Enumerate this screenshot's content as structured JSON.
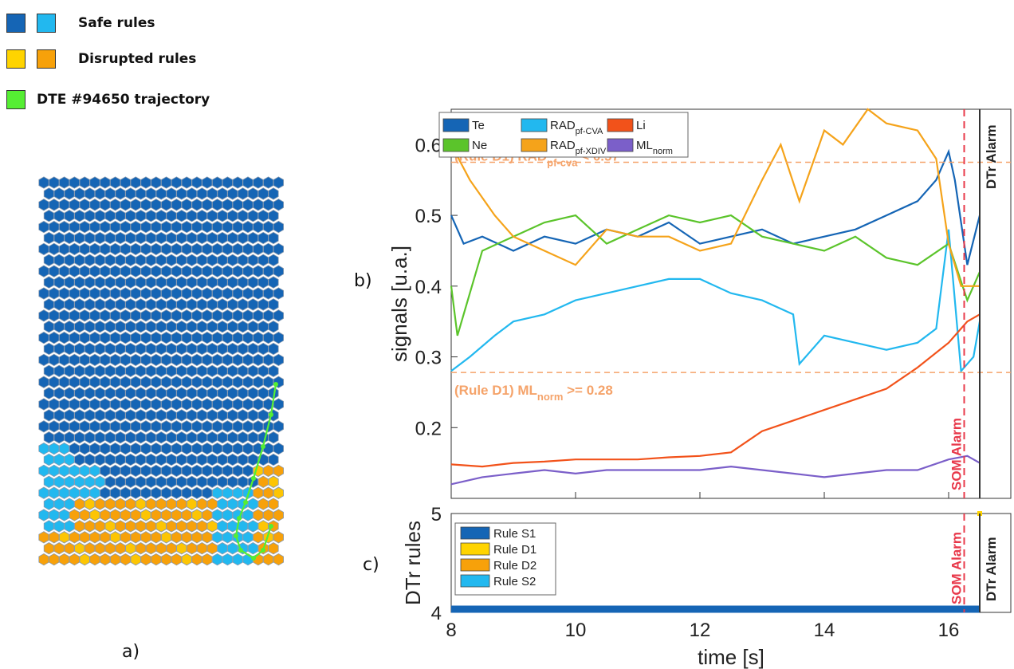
{
  "som_legend": {
    "safe_label": "Safe rules",
    "disrupted_label": "Disrupted rules",
    "trajectory_label": "DTE #94650 trajectory",
    "colors": {
      "safe_dark": "#1565b5",
      "safe_light": "#22b8ef",
      "disr_yellow": "#ffd400",
      "disr_orange": "#f7a10a",
      "traj": "#55ee33"
    }
  },
  "panel_labels": {
    "a": "a)",
    "b": "b)",
    "c": "c)"
  },
  "chart_data": [
    {
      "type": "line",
      "panel": "b",
      "ylabel": "signals [u.a.]",
      "xlim": [
        8,
        17
      ],
      "ylim": [
        0.1,
        0.65
      ],
      "yticks": [
        "0.2",
        "0.3",
        "0.4",
        "0.5",
        "0.6"
      ],
      "series": [
        {
          "name": "Te",
          "color": "#1565b5",
          "x": [
            8,
            8.2,
            8.5,
            9,
            9.5,
            10,
            10.5,
            11,
            11.5,
            12,
            12.5,
            13,
            13.5,
            14,
            14.5,
            15,
            15.5,
            15.8,
            16,
            16.1,
            16.3,
            16.5
          ],
          "y": [
            0.5,
            0.46,
            0.47,
            0.45,
            0.47,
            0.46,
            0.48,
            0.47,
            0.49,
            0.46,
            0.47,
            0.48,
            0.46,
            0.47,
            0.48,
            0.5,
            0.52,
            0.55,
            0.59,
            0.55,
            0.43,
            0.5
          ]
        },
        {
          "name": "RAD_pf-CVA",
          "color": "#22b8ef",
          "x": [
            8,
            8.3,
            8.7,
            9,
            9.5,
            10,
            10.5,
            11,
            11.5,
            12,
            12.5,
            13,
            13.5,
            13.6,
            14,
            14.5,
            15,
            15.5,
            15.8,
            16,
            16.2,
            16.4,
            16.5
          ],
          "y": [
            0.28,
            0.3,
            0.33,
            0.35,
            0.36,
            0.38,
            0.39,
            0.4,
            0.41,
            0.41,
            0.39,
            0.38,
            0.36,
            0.29,
            0.33,
            0.32,
            0.31,
            0.32,
            0.34,
            0.48,
            0.28,
            0.3,
            0.35
          ]
        },
        {
          "name": "Li",
          "color": "#f2521a",
          "x": [
            8,
            8.5,
            9,
            9.5,
            10,
            10.5,
            11,
            11.5,
            12,
            12.5,
            13,
            13.5,
            14,
            14.5,
            15,
            15.5,
            16,
            16.3,
            16.5
          ],
          "y": [
            0.148,
            0.145,
            0.15,
            0.152,
            0.155,
            0.155,
            0.155,
            0.158,
            0.16,
            0.165,
            0.195,
            0.21,
            0.225,
            0.24,
            0.255,
            0.285,
            0.32,
            0.35,
            0.36
          ]
        },
        {
          "name": "Ne",
          "color": "#5bc42b",
          "x": [
            8,
            8.1,
            8.5,
            9,
            9.5,
            10,
            10.5,
            11,
            11.5,
            12,
            12.5,
            13,
            13.5,
            14,
            14.5,
            15,
            15.5,
            16,
            16.3,
            16.5
          ],
          "y": [
            0.4,
            0.33,
            0.45,
            0.47,
            0.49,
            0.5,
            0.46,
            0.48,
            0.5,
            0.49,
            0.5,
            0.47,
            0.46,
            0.45,
            0.47,
            0.44,
            0.43,
            0.46,
            0.38,
            0.42
          ]
        },
        {
          "name": "RAD_pf-XDIV",
          "color": "#f5a31a",
          "x": [
            8,
            8.3,
            8.7,
            9,
            9.5,
            10,
            10.5,
            11,
            11.5,
            12,
            12.5,
            13,
            13.3,
            13.6,
            14,
            14.3,
            14.7,
            15,
            15.5,
            15.8,
            16,
            16.2,
            16.5
          ],
          "y": [
            0.6,
            0.55,
            0.5,
            0.47,
            0.45,
            0.43,
            0.48,
            0.47,
            0.47,
            0.45,
            0.46,
            0.55,
            0.6,
            0.52,
            0.62,
            0.6,
            0.65,
            0.63,
            0.62,
            0.58,
            0.46,
            0.4,
            0.4
          ]
        },
        {
          "name": "ML_norm",
          "color": "#7b5fc9",
          "x": [
            8,
            8.5,
            9,
            9.5,
            10,
            10.5,
            11,
            11.5,
            12,
            12.5,
            13,
            13.5,
            14,
            14.5,
            15,
            15.5,
            16,
            16.3,
            16.5
          ],
          "y": [
            0.12,
            0.13,
            0.135,
            0.14,
            0.135,
            0.14,
            0.14,
            0.14,
            0.14,
            0.145,
            0.14,
            0.135,
            0.13,
            0.135,
            0.14,
            0.14,
            0.155,
            0.16,
            0.15
          ]
        }
      ],
      "legend_labels": {
        "Te": "Te",
        "Ne": "Ne",
        "RAD_pf-CVA": "RAD",
        "RAD_pf-CVA_sub": "pf-CVA",
        "RAD_pf-XDIV": "RAD",
        "RAD_pf-XDIV_sub": "pf-XDIV",
        "Li": "Li",
        "ML_norm": "ML",
        "ML_norm_sub": "norm"
      },
      "thresholds": [
        {
          "value": 0.575,
          "text_main": "(Rule D1) RAD",
          "text_sub": "pf-cva",
          "text_tail": " < 0.57"
        },
        {
          "value": 0.278,
          "text_main": "(Rule D1) ML",
          "text_sub": "norm",
          "text_tail": ">= 0.28"
        }
      ],
      "som_alarm": {
        "x": 16.25,
        "label": "SOM Alarm"
      },
      "dtr_alarm": {
        "x": 16.5,
        "label": "DTr Alarm"
      }
    },
    {
      "type": "line",
      "panel": "c",
      "ylabel": "DTr rules",
      "xlabel": "time [s]",
      "xlim": [
        8,
        17
      ],
      "ylim": [
        4,
        5
      ],
      "yticks": [
        "4",
        "5"
      ],
      "xticks": [
        "8",
        "10",
        "12",
        "14",
        "16"
      ],
      "series": [
        {
          "name": "Rule S1",
          "color": "#1565b5",
          "x": [
            8,
            16.5
          ],
          "y": [
            4,
            4
          ]
        },
        {
          "name": "Rule D1",
          "color": "#ffd400",
          "x": [
            16.5
          ],
          "y": [
            5
          ]
        },
        {
          "name": "Rule D2",
          "color": "#f7a10a",
          "x": [],
          "y": []
        },
        {
          "name": "Rule S2",
          "color": "#22b8ef",
          "x": [],
          "y": []
        }
      ],
      "som_alarm": {
        "x": 16.25,
        "label": "SOM Alarm"
      },
      "dtr_alarm": {
        "x": 16.5,
        "label": "DTr Alarm"
      }
    }
  ]
}
